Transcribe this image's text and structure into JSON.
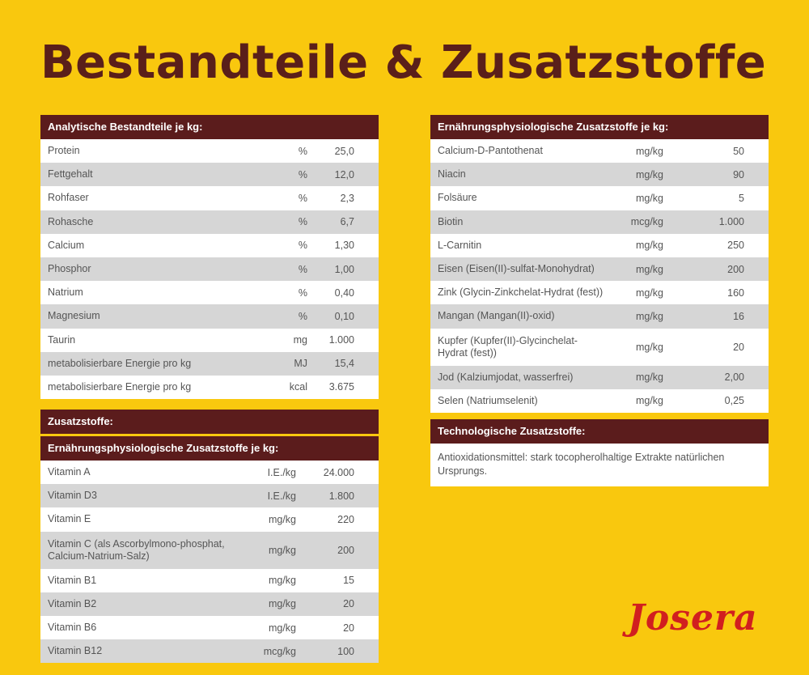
{
  "page_title": "Bestandteile & Zusatzstoffe",
  "analytical": {
    "header": "Analytische Bestandteile je kg:",
    "rows": [
      {
        "name": "Protein",
        "unit": "%",
        "value": "25,0"
      },
      {
        "name": "Fettgehalt",
        "unit": "%",
        "value": "12,0"
      },
      {
        "name": "Rohfaser",
        "unit": "%",
        "value": "2,3"
      },
      {
        "name": "Rohasche",
        "unit": "%",
        "value": "6,7"
      },
      {
        "name": "Calcium",
        "unit": "%",
        "value": "1,30"
      },
      {
        "name": "Phosphor",
        "unit": "%",
        "value": "1,00"
      },
      {
        "name": "Natrium",
        "unit": "%",
        "value": "0,40"
      },
      {
        "name": "Magnesium",
        "unit": "%",
        "value": "0,10"
      },
      {
        "name": "Taurin",
        "unit": "mg",
        "value": "1.000"
      },
      {
        "name": "metabolisierbare Energie pro kg",
        "unit": "MJ",
        "value": "15,4"
      },
      {
        "name": "metabolisierbare Energie pro kg",
        "unit": "kcal",
        "value": "3.675"
      }
    ]
  },
  "additives": {
    "header": "Zusatzstoffe:",
    "subheader": "Ernährungsphysiologische Zusatzstoffe je kg:",
    "rows": [
      {
        "name": "Vitamin A",
        "unit": "I.E./kg",
        "value": "24.000"
      },
      {
        "name": "Vitamin D3",
        "unit": "I.E./kg",
        "value": "1.800"
      },
      {
        "name": "Vitamin E",
        "unit": "mg/kg",
        "value": "220"
      },
      {
        "name": "Vitamin C (als Ascorbylmono-phosphat, Calcium-Natrium-Salz)",
        "unit": "mg/kg",
        "value": "200"
      },
      {
        "name": "Vitamin B1",
        "unit": "mg/kg",
        "value": "15"
      },
      {
        "name": "Vitamin B2",
        "unit": "mg/kg",
        "value": "20"
      },
      {
        "name": "Vitamin B6",
        "unit": "mg/kg",
        "value": "20"
      },
      {
        "name": "Vitamin B12",
        "unit": "mcg/kg",
        "value": "100"
      }
    ]
  },
  "nutritional": {
    "header": "Ernährungsphysiologische Zusatzstoffe je kg:",
    "rows": [
      {
        "name": "Calcium-D-Pantothenat",
        "unit": "mg/kg",
        "value": "50"
      },
      {
        "name": "Niacin",
        "unit": "mg/kg",
        "value": "90"
      },
      {
        "name": "Folsäure",
        "unit": "mg/kg",
        "value": "5"
      },
      {
        "name": "Biotin",
        "unit": "mcg/kg",
        "value": "1.000"
      },
      {
        "name": "L-Carnitin",
        "unit": "mg/kg",
        "value": "250"
      },
      {
        "name": "Eisen (Eisen(II)-sulfat-Monohydrat)",
        "unit": "mg/kg",
        "value": "200"
      },
      {
        "name": "Zink (Glycin-Zinkchelat-Hydrat (fest))",
        "unit": "mg/kg",
        "value": "160"
      },
      {
        "name": "Mangan (Mangan(II)-oxid)",
        "unit": "mg/kg",
        "value": "16"
      },
      {
        "name": "Kupfer (Kupfer(II)-Glycinchelat-Hydrat (fest))",
        "unit": "mg/kg",
        "value": "20"
      },
      {
        "name": "Jod (Kalziumjodat, wasserfrei)",
        "unit": "mg/kg",
        "value": "2,00"
      },
      {
        "name": "Selen (Natriumselenit)",
        "unit": "mg/kg",
        "value": "0,25"
      }
    ]
  },
  "technological": {
    "header": "Technologische Zusatzstoffe:",
    "text": "Antioxidationsmittel: stark tocopherolhaltige Extrakte natürlichen Ursprungs."
  },
  "logo": {
    "text": "Josera",
    "color": "#d11f1f"
  },
  "colors": {
    "background": "#f9c80e",
    "header": "#5b1c1c",
    "title": "#5a1f1a",
    "row_alt": "#d6d6d6"
  }
}
